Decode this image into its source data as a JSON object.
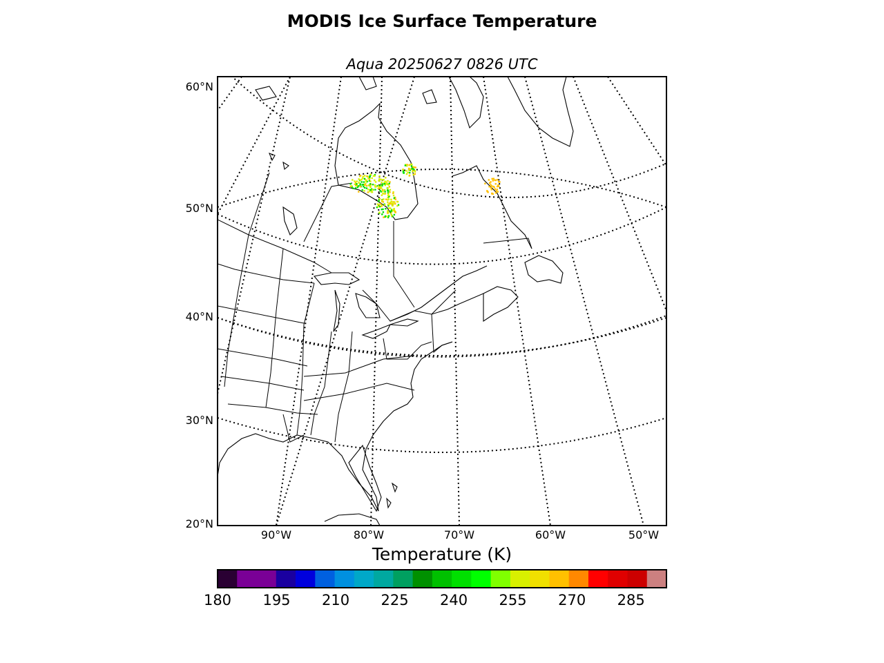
{
  "figure": {
    "title": "MODIS Ice Surface Temperature",
    "subtitle": "Aqua 20250627 0826 UTC"
  },
  "map": {
    "lat_labels": [
      "60°N",
      "50°N",
      "40°N",
      "30°N",
      "20°N"
    ],
    "lon_labels": [
      "90°W",
      "80°W",
      "70°W",
      "60°W",
      "50°W"
    ],
    "graticule": "dotted",
    "projection": "conic"
  },
  "colorbar": {
    "label": "Temperature (K)",
    "min": 180,
    "max": 294,
    "step": 5,
    "ticks": [
      "180",
      "195",
      "210",
      "225",
      "240",
      "255",
      "270",
      "285"
    ],
    "colors": [
      "#2a0033",
      "#7a0096",
      "#7a0096",
      "#1a00a0",
      "#0000dd",
      "#0060e0",
      "#0090e0",
      "#00a8c8",
      "#00a8a0",
      "#00a060",
      "#009000",
      "#00c000",
      "#00e000",
      "#00ff00",
      "#80ff00",
      "#d8f000",
      "#f0e000",
      "#ffc000",
      "#ff8800",
      "#ff0000",
      "#e00000",
      "#cc0000",
      "#cc8080"
    ]
  },
  "data_colors": {
    "warm": "#ffc000",
    "mid": "#d8f000",
    "cool": "#00e000"
  }
}
